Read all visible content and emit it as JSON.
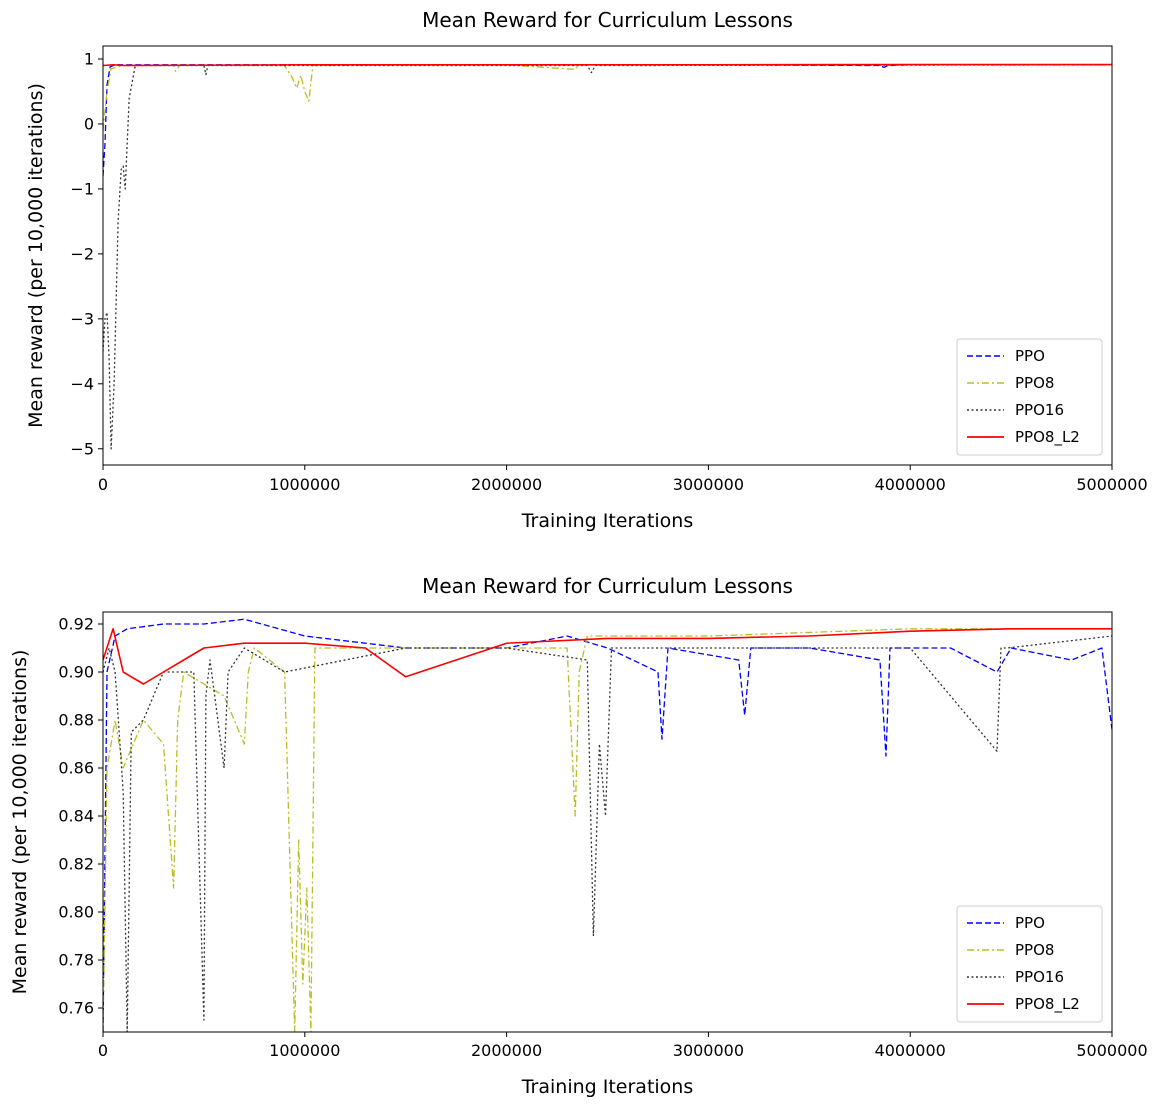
{
  "chart_data": [
    {
      "type": "line",
      "title": "Mean Reward for Curriculum Lessons",
      "xlabel": "Training Iterations",
      "ylabel": "Mean reward (per 10,000 iterations)",
      "xlim": [
        0,
        5000000
      ],
      "ylim": [
        -5.25,
        1.2
      ],
      "xticks": [
        0,
        1000000,
        2000000,
        3000000,
        4000000,
        5000000
      ],
      "xtick_labels": [
        "0",
        "1000000",
        "2000000",
        "3000000",
        "4000000",
        "5000000"
      ],
      "yticks": [
        1,
        0,
        -1,
        -2,
        -3,
        -4,
        -5
      ],
      "ytick_labels": [
        "1",
        "0",
        "−1",
        "−2",
        "−3",
        "−4",
        "−5"
      ],
      "grid": false,
      "legend_position": "lower-right",
      "series": [
        {
          "name": "PPO",
          "color": "#0000ff",
          "style": "dashed",
          "x": [
            0,
            10000,
            20000,
            35000,
            60000,
            1000000,
            2000000,
            3000000,
            3850000,
            3870000,
            3890000,
            4000000,
            5000000
          ],
          "y": [
            -0.8,
            -0.3,
            0.6,
            0.88,
            0.91,
            0.91,
            0.91,
            0.91,
            0.9,
            0.87,
            0.9,
            0.91,
            0.91
          ]
        },
        {
          "name": "PPO8",
          "color": "#bcbd22",
          "style": "dashdot",
          "x": [
            0,
            20000,
            40000,
            100000,
            350000,
            360000,
            380000,
            900000,
            940000,
            960000,
            980000,
            1000000,
            1020000,
            1040000,
            2000000,
            2340000,
            2360000,
            2380000,
            5000000
          ],
          "y": [
            -0.1,
            0.5,
            0.85,
            0.9,
            0.9,
            0.81,
            0.9,
            0.9,
            0.7,
            0.55,
            0.75,
            0.5,
            0.35,
            0.9,
            0.91,
            0.84,
            0.91,
            0.91,
            0.91
          ]
        },
        {
          "name": "PPO16",
          "color": "#333333",
          "style": "dotted",
          "x": [
            0,
            10000,
            20000,
            30000,
            40000,
            55000,
            75000,
            90000,
            100000,
            110000,
            130000,
            160000,
            500000,
            510000,
            520000,
            2400000,
            2420000,
            2440000,
            5000000
          ],
          "y": [
            -3.5,
            -3.0,
            -2.9,
            -3.6,
            -5.0,
            -4.0,
            -1.5,
            -0.7,
            -0.65,
            -1.0,
            0.4,
            0.9,
            0.9,
            0.76,
            0.9,
            0.9,
            0.79,
            0.9,
            0.91
          ]
        },
        {
          "name": "PPO8_L2",
          "color": "#ff0000",
          "style": "solid",
          "x": [
            0,
            50000,
            100000,
            1000000,
            2000000,
            3000000,
            4000000,
            5000000
          ],
          "y": [
            0.9,
            0.91,
            0.9,
            0.91,
            0.91,
            0.91,
            0.915,
            0.915
          ]
        }
      ]
    },
    {
      "type": "line",
      "title": "Mean Reward for Curriculum Lessons",
      "xlabel": "Training Iterations",
      "ylabel": "Mean reward (per 10,000 iterations)",
      "xlim": [
        0,
        5000000
      ],
      "ylim": [
        0.75,
        0.925
      ],
      "xticks": [
        0,
        1000000,
        2000000,
        3000000,
        4000000,
        5000000
      ],
      "xtick_labels": [
        "0",
        "1000000",
        "2000000",
        "3000000",
        "4000000",
        "5000000"
      ],
      "yticks": [
        0.92,
        0.9,
        0.88,
        0.86,
        0.84,
        0.82,
        0.8,
        0.78,
        0.76
      ],
      "ytick_labels": [
        "0.92",
        "0.90",
        "0.88",
        "0.86",
        "0.84",
        "0.82",
        "0.80",
        "0.78",
        "0.76"
      ],
      "grid": false,
      "legend_position": "lower-right",
      "series": [
        {
          "name": "PPO",
          "color": "#0000ff",
          "style": "dashed",
          "x": [
            0,
            20000,
            60000,
            120000,
            300000,
            500000,
            700000,
            1000000,
            1500000,
            2000000,
            2300000,
            2500000,
            2750000,
            2770000,
            2800000,
            3150000,
            3180000,
            3210000,
            3500000,
            3850000,
            3880000,
            3900000,
            4200000,
            4430000,
            4500000,
            4800000,
            4950000,
            5000000
          ],
          "y": [
            0.75,
            0.9,
            0.915,
            0.918,
            0.92,
            0.92,
            0.922,
            0.915,
            0.91,
            0.91,
            0.915,
            0.91,
            0.9,
            0.872,
            0.91,
            0.905,
            0.882,
            0.91,
            0.91,
            0.905,
            0.865,
            0.91,
            0.91,
            0.9,
            0.91,
            0.905,
            0.91,
            0.876
          ]
        },
        {
          "name": "PPO8",
          "color": "#bcbd22",
          "style": "dashdot",
          "x": [
            0,
            20000,
            60000,
            100000,
            200000,
            300000,
            350000,
            370000,
            400000,
            600000,
            700000,
            720000,
            750000,
            900000,
            950000,
            970000,
            990000,
            1010000,
            1030000,
            1050000,
            1200000,
            2000000,
            2300000,
            2340000,
            2360000,
            2400000,
            3000000,
            4000000,
            5000000
          ],
          "y": [
            0.75,
            0.86,
            0.88,
            0.86,
            0.88,
            0.87,
            0.81,
            0.88,
            0.9,
            0.89,
            0.87,
            0.9,
            0.91,
            0.9,
            0.75,
            0.83,
            0.77,
            0.81,
            0.75,
            0.91,
            0.91,
            0.91,
            0.91,
            0.84,
            0.9,
            0.915,
            0.915,
            0.918,
            0.918
          ]
        },
        {
          "name": "PPO16",
          "color": "#333333",
          "style": "dotted",
          "x": [
            0,
            30000,
            60000,
            100000,
            120000,
            140000,
            200000,
            300000,
            450000,
            500000,
            510000,
            530000,
            600000,
            620000,
            700000,
            900000,
            1500000,
            2000000,
            2400000,
            2430000,
            2460000,
            2490000,
            2520000,
            3000000,
            4000000,
            4430000,
            4450000,
            4480000,
            5000000
          ],
          "y": [
            0.9,
            0.91,
            0.9,
            0.85,
            0.75,
            0.875,
            0.88,
            0.9,
            0.9,
            0.755,
            0.89,
            0.905,
            0.86,
            0.9,
            0.91,
            0.9,
            0.91,
            0.91,
            0.905,
            0.79,
            0.87,
            0.84,
            0.91,
            0.91,
            0.91,
            0.867,
            0.91,
            0.91,
            0.915
          ]
        },
        {
          "name": "PPO8_L2",
          "color": "#ff0000",
          "style": "solid",
          "x": [
            0,
            50000,
            100000,
            200000,
            300000,
            400000,
            500000,
            700000,
            1000000,
            1300000,
            1500000,
            2000000,
            2500000,
            3000000,
            3500000,
            4000000,
            4500000,
            5000000
          ],
          "y": [
            0.905,
            0.918,
            0.9,
            0.895,
            0.9,
            0.905,
            0.91,
            0.912,
            0.912,
            0.91,
            0.898,
            0.912,
            0.914,
            0.914,
            0.915,
            0.917,
            0.918,
            0.918
          ]
        }
      ]
    }
  ]
}
